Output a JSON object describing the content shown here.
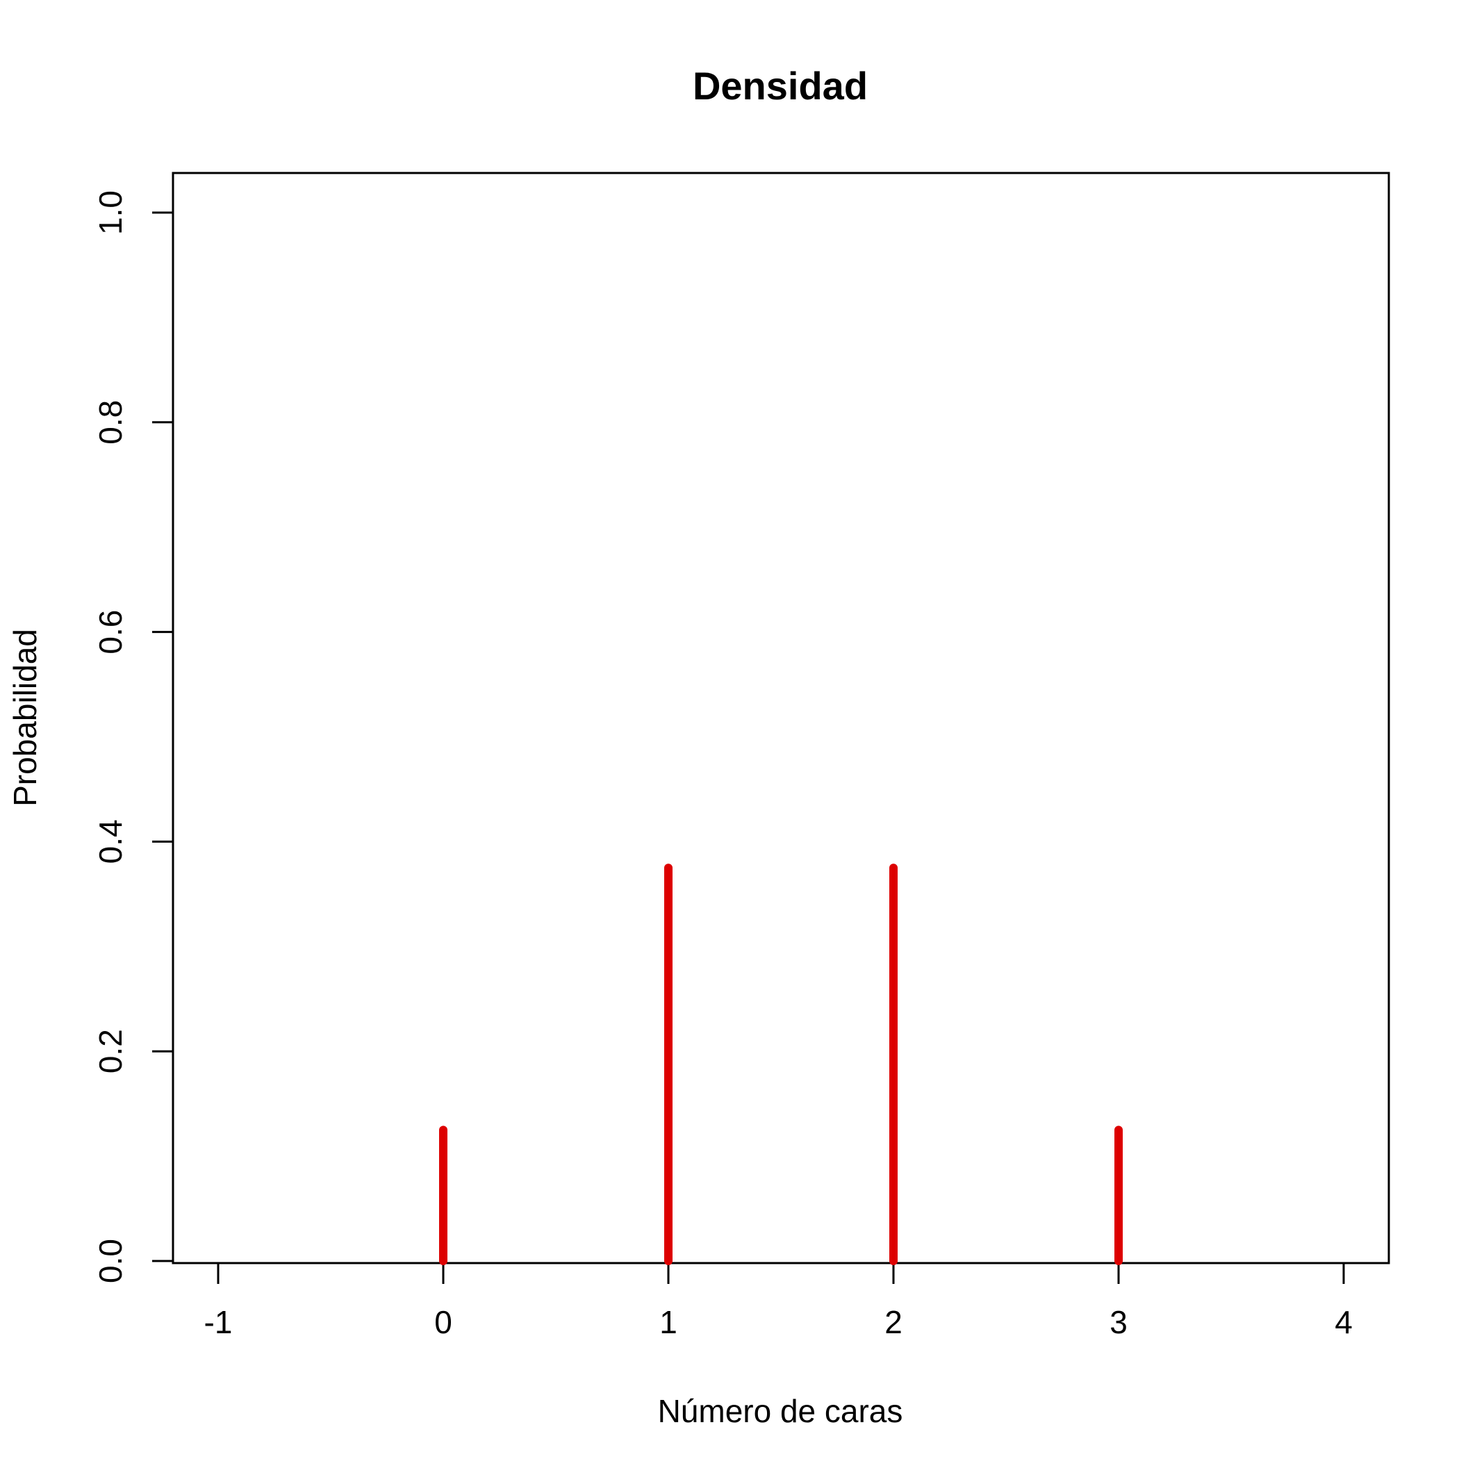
{
  "chart_data": {
    "type": "bar",
    "title": "Densidad",
    "xlabel": "Número de caras",
    "ylabel": "Probabilidad",
    "x": [
      0,
      1,
      2,
      3
    ],
    "values": [
      0.125,
      0.375,
      0.375,
      0.125
    ],
    "xlim": [
      -1.2,
      4.2
    ],
    "ylim": [
      0.0,
      1.04
    ],
    "x_ticks": [
      "-1",
      "0",
      "1",
      "2",
      "3",
      "4"
    ],
    "y_ticks": [
      "0.0",
      "0.2",
      "0.4",
      "0.6",
      "0.8",
      "1.0"
    ],
    "line_color": "#dd0000",
    "grid": false
  }
}
